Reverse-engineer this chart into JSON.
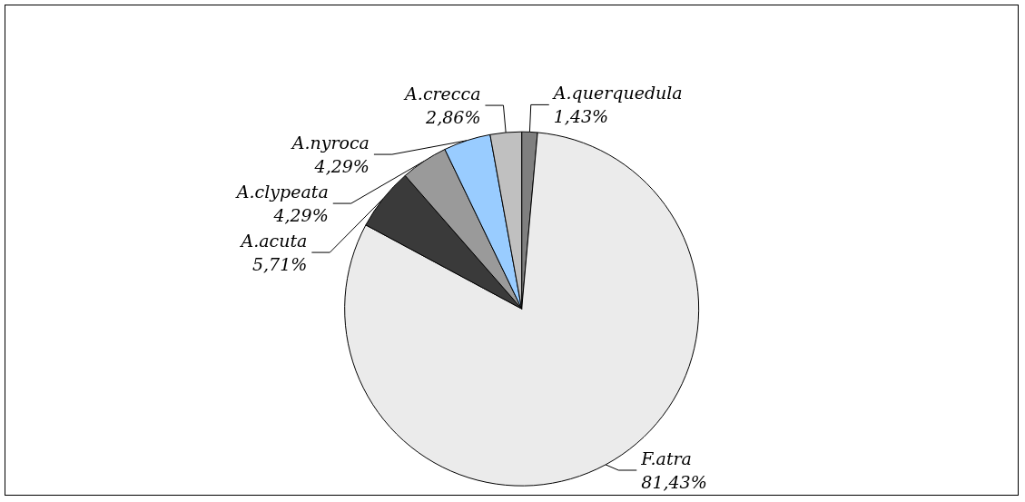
{
  "chart_data": {
    "type": "pie",
    "categories": [
      "A.querquedula",
      "F.atra",
      "A.acuta",
      "A.clypeata",
      "A.nyroca",
      "A.crecca"
    ],
    "values": [
      1.43,
      81.43,
      5.71,
      4.29,
      4.29,
      2.86
    ],
    "value_labels": [
      "1,43%",
      "81,43%",
      "5,71%",
      "4,29%",
      "4,29%",
      "2,86%"
    ],
    "colors": [
      "#7f7f7f",
      "#ebebeb",
      "#3a3a3a",
      "#9a9a9a",
      "#99ccff",
      "#c0c0c0"
    ],
    "legend": false
  }
}
